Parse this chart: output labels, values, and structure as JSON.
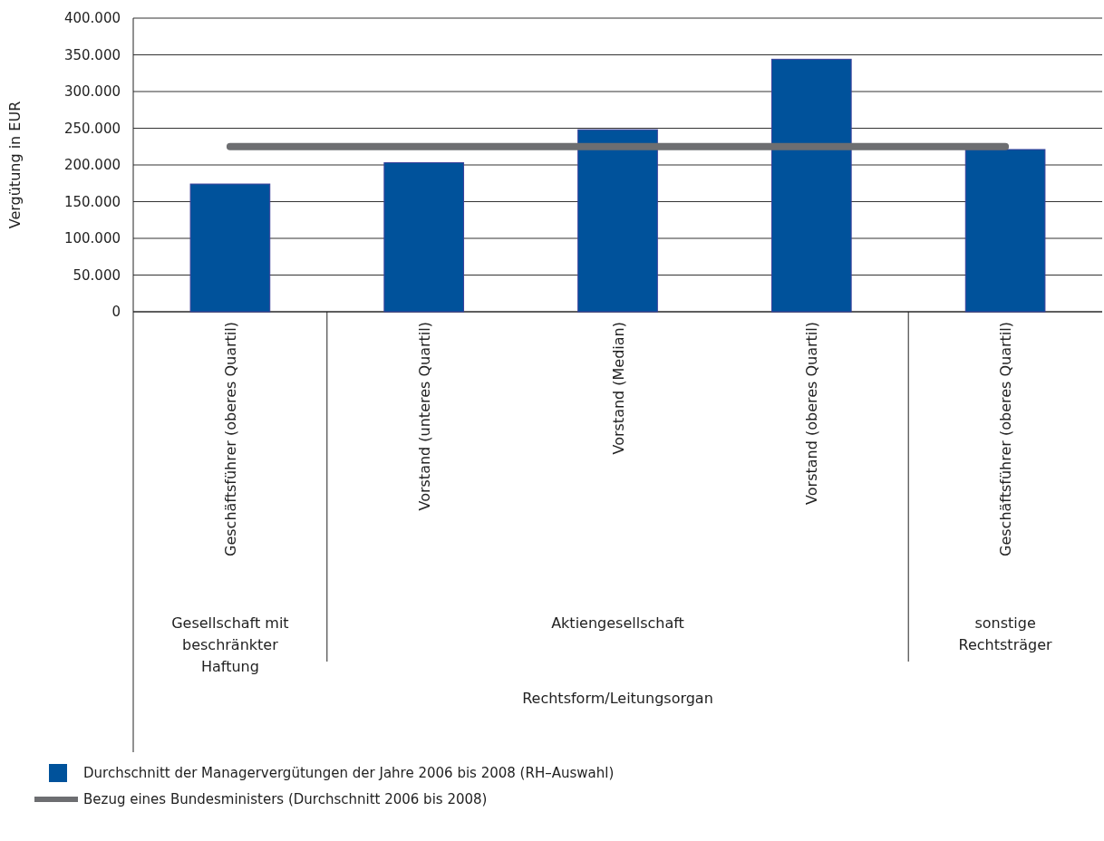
{
  "chart_data": {
    "type": "bar",
    "ylabel": "Vergütung in EUR",
    "categories": [
      "Geschäftsführer (oberes Quartil)",
      "Vorstand (unteres Quartil)",
      "Vorstand (Median)",
      "Vorstand (oberes Quartil)",
      "Geschäftsführer (oberes Quartil)"
    ],
    "series": [
      {
        "name": "Durchschnitt der Managervergütungen der Jahre 2006 bis 2008 (RH–Auswahl)",
        "color": "#00529b",
        "values": [
          174000,
          203000,
          248000,
          344000,
          221000
        ]
      },
      {
        "name": "Bezug eines Bundesministers (Durchschnitt 2006 bis 2008)",
        "type": "line",
        "color": "#6d6e71",
        "values": [
          225000,
          225000,
          225000,
          225000,
          225000
        ]
      }
    ],
    "ylim": [
      0,
      400000
    ],
    "yticks": [
      {
        "value": 0,
        "label": "0"
      },
      {
        "value": 50000,
        "label": "50.000"
      },
      {
        "value": 100000,
        "label": "100.000"
      },
      {
        "value": 150000,
        "label": "150.000"
      },
      {
        "value": 200000,
        "label": "200.000"
      },
      {
        "value": 250000,
        "label": "250.000"
      },
      {
        "value": 300000,
        "label": "300.000"
      },
      {
        "value": 350000,
        "label": "350.000"
      },
      {
        "value": 400000,
        "label": "400.000"
      }
    ],
    "grid": "y",
    "legend": "bottom",
    "marker": "none",
    "annotations": [
      "Gesellschaft mit\nbeschränkter\nHaftung",
      "Aktiengesellschaft",
      "sonstige\nRechtsträger",
      "Rechtsform/Leitungsorgan"
    ]
  }
}
